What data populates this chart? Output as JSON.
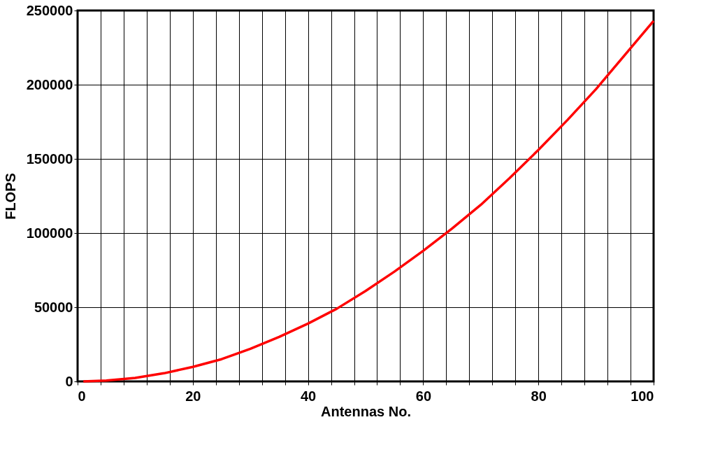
{
  "chart_data": {
    "type": "line",
    "xlabel": "Antennas No.",
    "ylabel": "FLOPS",
    "x": [
      1,
      5,
      10,
      15,
      20,
      25,
      30,
      35,
      40,
      45,
      50,
      55,
      60,
      65,
      70,
      75,
      80,
      85,
      90,
      95,
      100
    ],
    "series": [
      {
        "color": "#ff0000",
        "values": [
          0,
          600,
          2400,
          5500,
          9800,
          15000,
          22000,
          30000,
          39000,
          49000,
          61000,
          74000,
          88000,
          103000,
          119000,
          137000,
          156000,
          176000,
          197000,
          220000,
          243000
        ]
      }
    ],
    "xlim": [
      0,
      100
    ],
    "ylim": [
      0,
      250000
    ],
    "xticks": [
      0,
      {
        "value": 4,
        "label": null
      },
      {
        "value": 8,
        "label": null
      },
      {
        "value": 12,
        "label": null
      },
      {
        "value": 16,
        "label": null
      },
      20,
      {
        "value": 24,
        "label": null
      },
      {
        "value": 28,
        "label": null
      },
      {
        "value": 32,
        "label": null
      },
      {
        "value": 36,
        "label": null
      },
      40,
      {
        "value": 44,
        "label": null
      },
      {
        "value": 48,
        "label": null
      },
      {
        "value": 52,
        "label": null
      },
      {
        "value": 56,
        "label": null
      },
      60,
      {
        "value": 64,
        "label": null
      },
      {
        "value": 68,
        "label": null
      },
      {
        "value": 72,
        "label": null
      },
      {
        "value": 76,
        "label": null
      },
      80,
      {
        "value": 84,
        "label": null
      },
      {
        "value": 88,
        "label": null
      },
      {
        "value": 92,
        "label": null
      },
      {
        "value": 96,
        "label": null
      },
      100
    ],
    "yticks": [
      0,
      50000,
      100000,
      150000,
      200000,
      250000
    ],
    "grid": true,
    "marker": "none",
    "line_style": "solid",
    "legend": false
  }
}
